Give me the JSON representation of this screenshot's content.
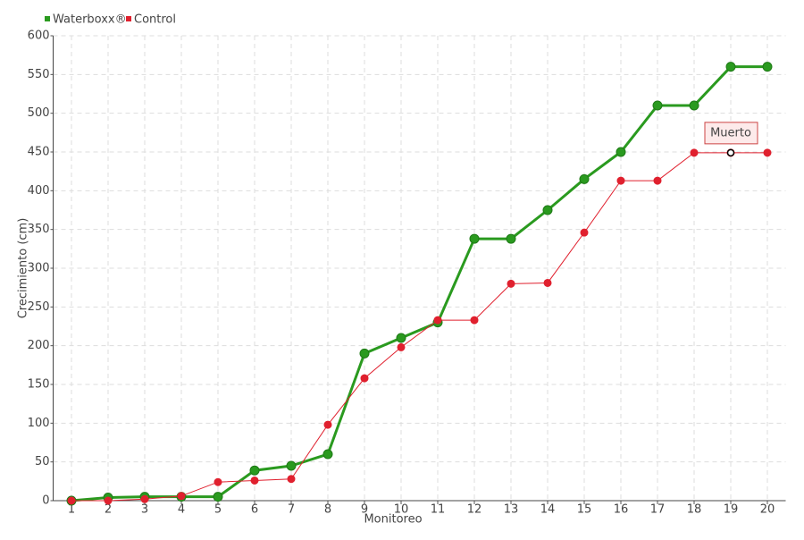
{
  "chart_data": {
    "type": "line",
    "x_label": "Monitoreo",
    "y_label": "Crecimiento (cm)",
    "categories": [
      "1",
      "2",
      "3",
      "4",
      "5",
      "6",
      "7",
      "8",
      "9",
      "10",
      "11",
      "12",
      "13",
      "14",
      "15",
      "16",
      "17",
      "18",
      "19",
      "20"
    ],
    "series": [
      {
        "name": "Waterboxx®",
        "color": "#2a9a1f",
        "values": [
          0,
          4,
          5,
          5,
          5,
          39,
          45,
          60,
          190,
          210,
          230,
          338,
          338,
          375,
          415,
          450,
          510,
          510,
          560,
          560
        ]
      },
      {
        "name": "Control",
        "color": "#e0202e",
        "values": [
          0,
          0,
          2,
          6,
          24,
          26,
          28,
          98,
          158,
          198,
          233,
          233,
          280,
          281,
          346,
          413,
          413,
          449,
          449,
          449
        ]
      }
    ],
    "annotation": "Muerto",
    "ylim": [
      0,
      600
    ],
    "yticks": [
      0,
      50,
      100,
      150,
      200,
      250,
      300,
      350,
      400,
      450,
      500,
      550,
      600
    ],
    "grid": true
  }
}
